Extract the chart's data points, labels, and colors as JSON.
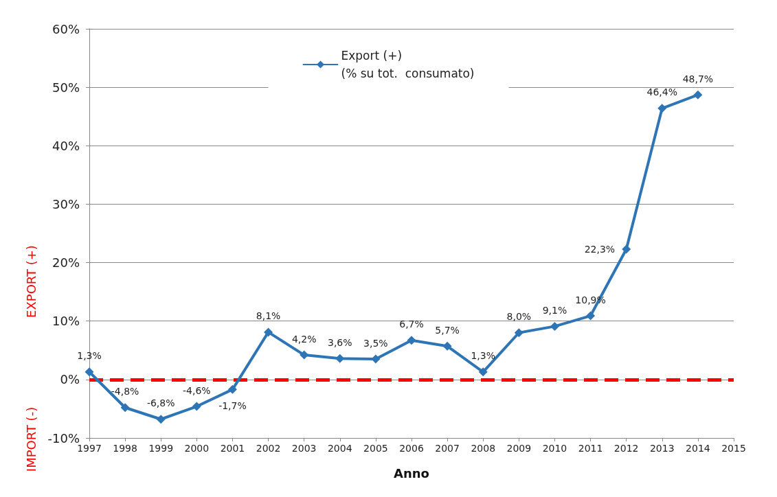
{
  "chart_data": {
    "type": "line",
    "xlabel": "Anno",
    "x": [
      1997,
      1998,
      1999,
      2000,
      2001,
      2002,
      2003,
      2004,
      2005,
      2006,
      2007,
      2008,
      2009,
      2010,
      2011,
      2012,
      2013,
      2014
    ],
    "series": [
      {
        "name": "Export (+)\n(% su tot.  consumato)",
        "color": "#2e75b6",
        "values": [
          1.3,
          -4.8,
          -6.8,
          -4.6,
          -1.7,
          8.1,
          4.2,
          3.6,
          3.5,
          6.7,
          5.7,
          1.3,
          8.0,
          9.1,
          10.9,
          22.3,
          46.4,
          48.7
        ],
        "value_labels": [
          "1,3%",
          "-4,8%",
          "-6,8%",
          "-4,6%",
          "-1,7%",
          "8,1%",
          "4,2%",
          "3,6%",
          "3,5%",
          "6,7%",
          "5,7%",
          "1,3%",
          "8,0%",
          "9,1%",
          "10,9%",
          "22,3%",
          "46,4%",
          "48,7%"
        ]
      }
    ],
    "xlim": [
      1997,
      2015
    ],
    "xticks": [
      1997,
      1998,
      1999,
      2000,
      2001,
      2002,
      2003,
      2004,
      2005,
      2006,
      2007,
      2008,
      2009,
      2010,
      2011,
      2012,
      2013,
      2014,
      2015
    ],
    "ylim": [
      -10,
      60
    ],
    "yticks": [
      {
        "value": -10,
        "label": "-10%"
      },
      {
        "value": 0,
        "label": "0%"
      },
      {
        "value": 10,
        "label": "10%"
      },
      {
        "value": 20,
        "label": "20%"
      },
      {
        "value": 30,
        "label": "30%"
      },
      {
        "value": 40,
        "label": "40%"
      },
      {
        "value": 50,
        "label": "50%"
      },
      {
        "value": 60,
        "label": "60%"
      }
    ],
    "ref_lines": [
      {
        "axis": "y",
        "value": 0,
        "color": "#ff0000",
        "line_style": "dashed"
      }
    ],
    "annotations": [
      "EXPORT (+)",
      "IMPORT (-)"
    ],
    "grid": "y",
    "legend": "top",
    "marker": "diamond",
    "line_style": "solid"
  }
}
